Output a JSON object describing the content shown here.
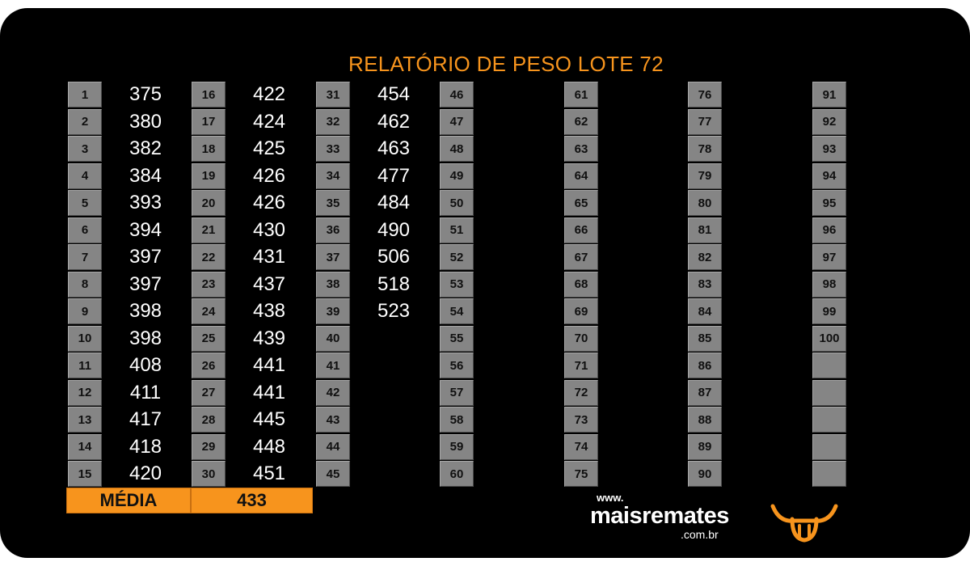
{
  "title": "RELATÓRIO DE PESO LOTE 72",
  "columns": [
    {
      "numbers": [
        "1",
        "2",
        "3",
        "4",
        "5",
        "6",
        "7",
        "8",
        "9",
        "10",
        "11",
        "12",
        "13",
        "14",
        "15"
      ],
      "values": [
        "375",
        "380",
        "382",
        "384",
        "393",
        "394",
        "397",
        "397",
        "398",
        "398",
        "408",
        "411",
        "417",
        "418",
        "420"
      ]
    },
    {
      "numbers": [
        "16",
        "17",
        "18",
        "19",
        "20",
        "21",
        "22",
        "23",
        "24",
        "25",
        "26",
        "27",
        "28",
        "29",
        "30"
      ],
      "values": [
        "422",
        "424",
        "425",
        "426",
        "426",
        "430",
        "431",
        "437",
        "438",
        "439",
        "441",
        "441",
        "445",
        "448",
        "451"
      ]
    },
    {
      "numbers": [
        "31",
        "32",
        "33",
        "34",
        "35",
        "36",
        "37",
        "38",
        "39",
        "40",
        "41",
        "42",
        "43",
        "44",
        "45"
      ],
      "values": [
        "454",
        "462",
        "463",
        "477",
        "484",
        "490",
        "506",
        "518",
        "523",
        "",
        "",
        "",
        "",
        "",
        ""
      ]
    },
    {
      "numbers": [
        "46",
        "47",
        "48",
        "49",
        "50",
        "51",
        "52",
        "53",
        "54",
        "55",
        "56",
        "57",
        "58",
        "59",
        "60"
      ],
      "values": [
        "",
        "",
        "",
        "",
        "",
        "",
        "",
        "",
        "",
        "",
        "",
        "",
        "",
        "",
        ""
      ]
    },
    {
      "numbers": [
        "61",
        "62",
        "63",
        "64",
        "65",
        "66",
        "67",
        "68",
        "69",
        "70",
        "71",
        "72",
        "73",
        "74",
        "75"
      ],
      "values": [
        "",
        "",
        "",
        "",
        "",
        "",
        "",
        "",
        "",
        "",
        "",
        "",
        "",
        "",
        ""
      ]
    },
    {
      "numbers": [
        "76",
        "77",
        "78",
        "79",
        "80",
        "81",
        "82",
        "83",
        "84",
        "85",
        "86",
        "87",
        "88",
        "89",
        "90"
      ],
      "values": [
        "",
        "",
        "",
        "",
        "",
        "",
        "",
        "",
        "",
        "",
        "",
        "",
        "",
        "",
        ""
      ]
    },
    {
      "numbers": [
        "91",
        "92",
        "93",
        "94",
        "95",
        "96",
        "97",
        "98",
        "99",
        "100",
        "",
        "",
        "",
        "",
        ""
      ],
      "values": [
        "",
        "",
        "",
        "",
        "",
        "",
        "",
        "",
        "",
        "",
        "",
        "",
        "",
        "",
        ""
      ]
    }
  ],
  "average": {
    "label": "MÉDIA",
    "value": "433"
  },
  "logo": {
    "www": "www.",
    "name": "maisremates",
    "domain": ".com.br"
  },
  "colors": {
    "accent": "#f7941d",
    "background": "#000000",
    "cell": "#858585",
    "text": "#ffffff"
  },
  "icons": {
    "brand": "bull-head-icon"
  }
}
